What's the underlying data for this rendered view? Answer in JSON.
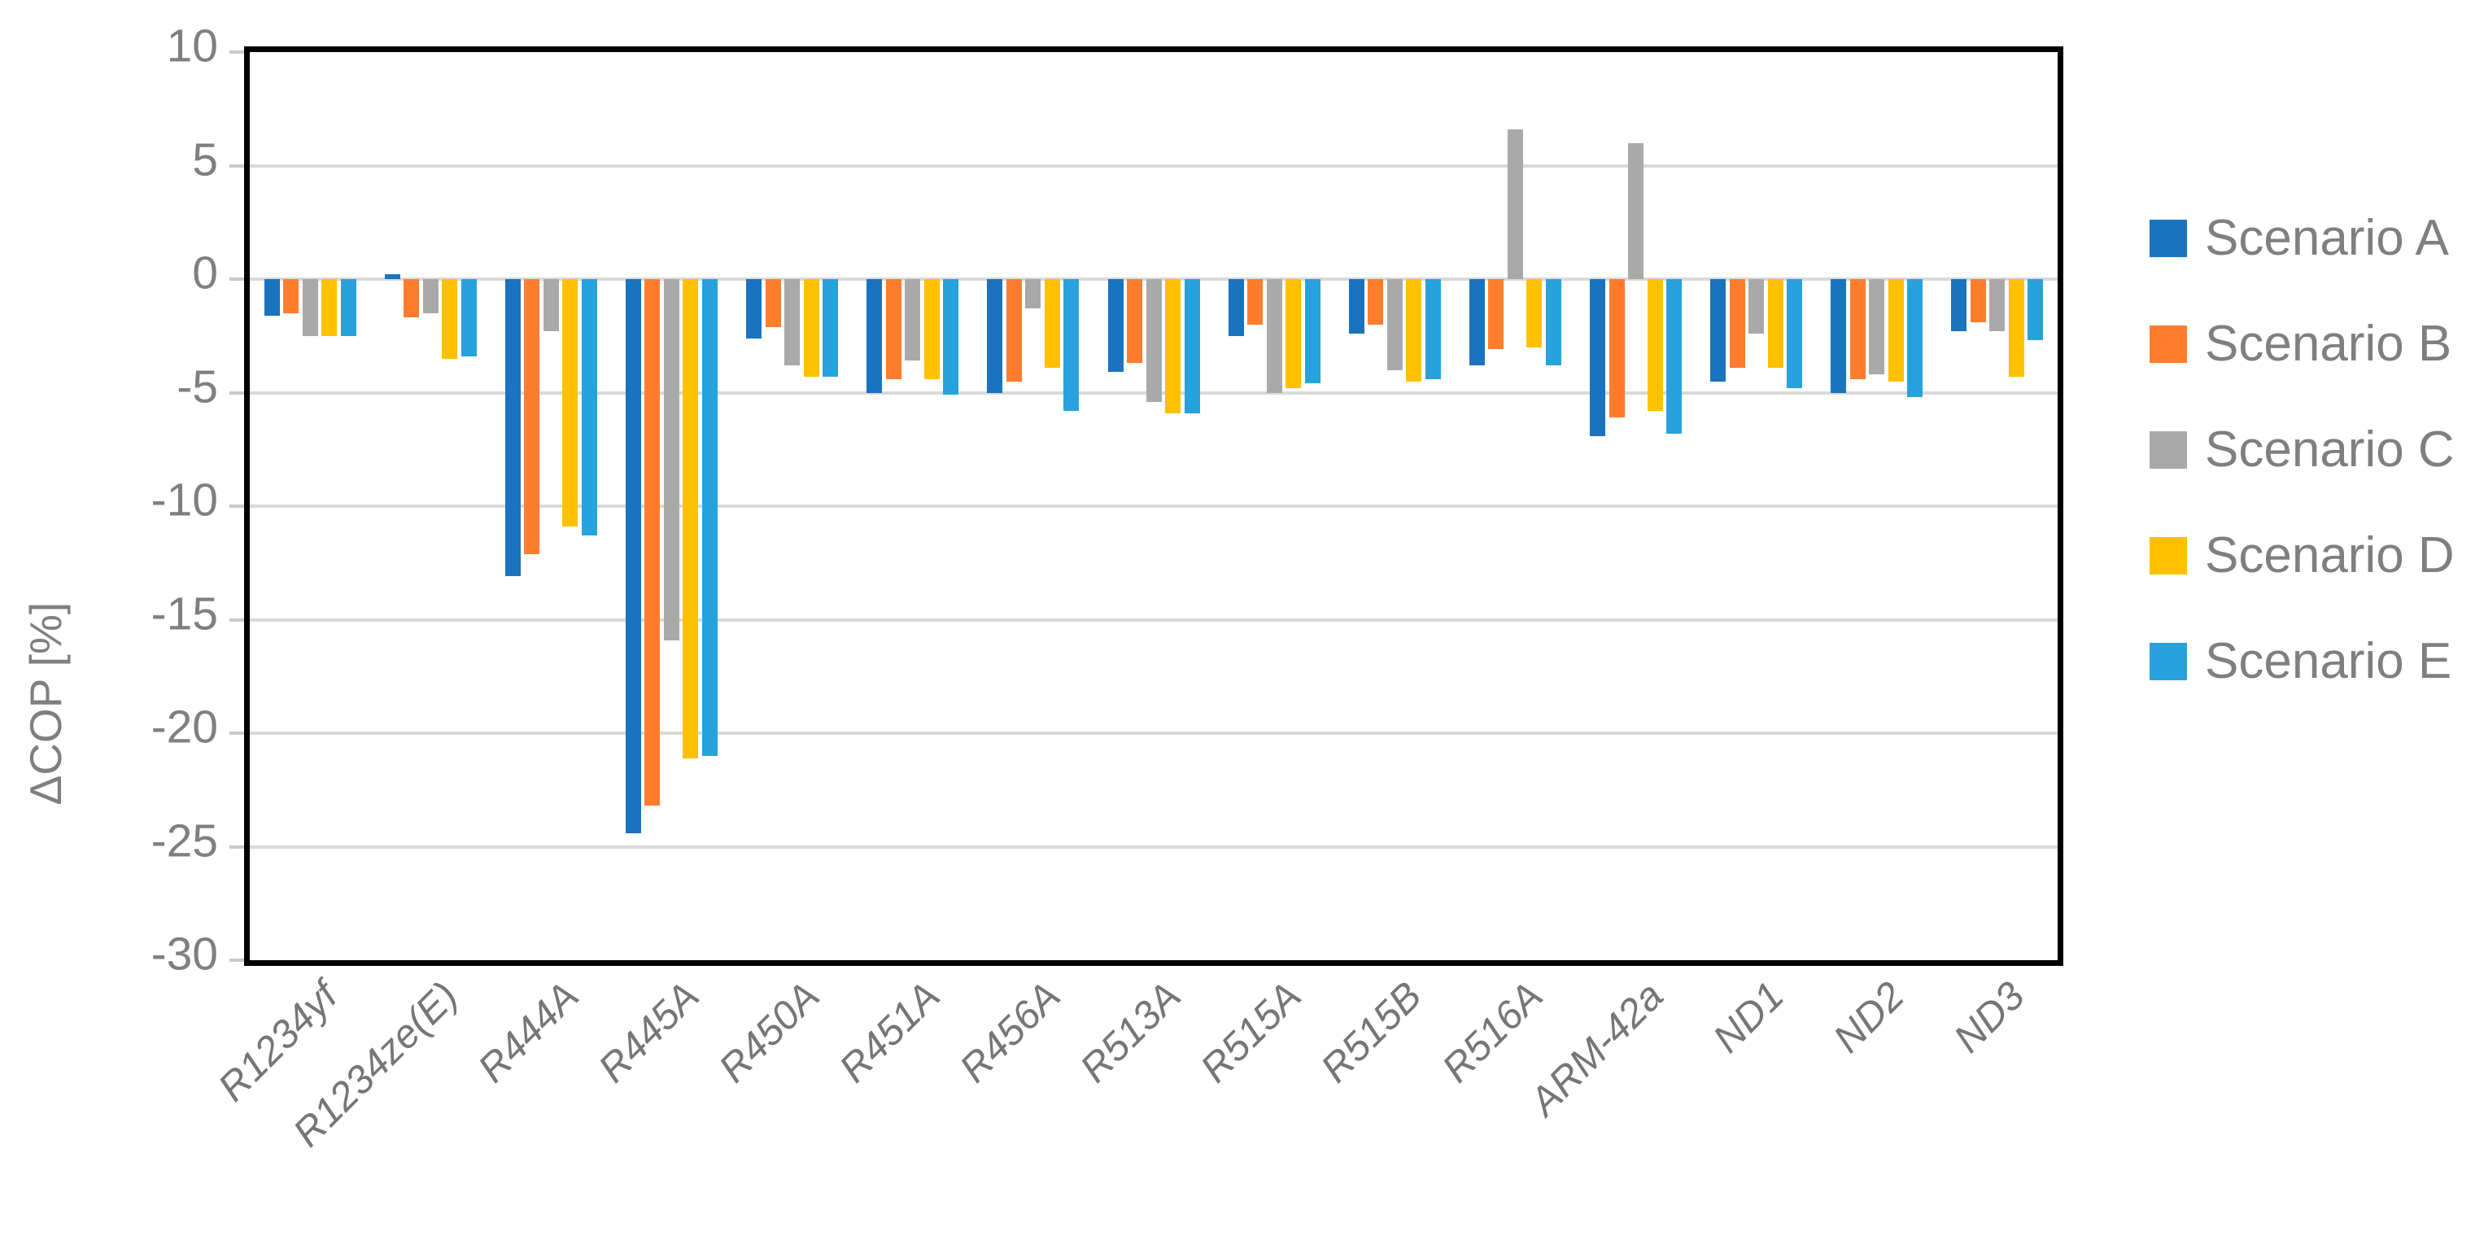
{
  "chart_data": {
    "type": "bar",
    "title": "",
    "xlabel": "",
    "ylabel": "ΔCOP [%]",
    "ylim": [
      -30,
      10
    ],
    "yticks": [
      10,
      5,
      0,
      -5,
      -10,
      -15,
      -20,
      -25,
      -30
    ],
    "grid": "horizontal",
    "legend_position": "right",
    "categories": [
      "R1234yf",
      "R1234ze(E)",
      "R444A",
      "R445A",
      "R450A",
      "R451A",
      "R456A",
      "R513A",
      "R515A",
      "R515B",
      "R516A",
      "ARM-42a",
      "ND1",
      "ND2",
      "ND3"
    ],
    "series": [
      {
        "name": "Scenario A",
        "color": "#1a73be",
        "values": [
          -1.6,
          0.2,
          -13.1,
          -24.4,
          -2.6,
          -5.0,
          -5.0,
          -4.1,
          -2.5,
          -2.4,
          -3.8,
          -6.9,
          -4.5,
          -5.0,
          -2.3
        ]
      },
      {
        "name": "Scenario B",
        "color": "#ff7d2d",
        "values": [
          -1.5,
          -1.7,
          -12.1,
          -23.2,
          -2.1,
          -4.4,
          -4.5,
          -3.7,
          -2.0,
          -2.0,
          -3.1,
          -6.1,
          -3.9,
          -4.4,
          -1.9
        ]
      },
      {
        "name": "Scenario C",
        "color": "#a9a9a9",
        "values": [
          -2.5,
          -1.5,
          -2.3,
          -15.9,
          -3.8,
          -3.6,
          -1.3,
          -5.4,
          -5.0,
          -4.0,
          6.6,
          6.0,
          -2.4,
          -4.2,
          -2.3
        ]
      },
      {
        "name": "Scenario D",
        "color": "#ffc000",
        "values": [
          -2.5,
          -3.5,
          -10.9,
          -21.1,
          -4.3,
          -4.4,
          -3.9,
          -5.9,
          -4.8,
          -4.5,
          -3.0,
          -5.8,
          -3.9,
          -4.5,
          -4.3
        ]
      },
      {
        "name": "Scenario E",
        "color": "#28a2dc",
        "values": [
          -2.5,
          -3.4,
          -11.3,
          -21.0,
          -4.3,
          -5.1,
          -5.8,
          -5.9,
          -4.6,
          -4.4,
          -3.8,
          -6.8,
          -4.8,
          -5.2,
          -2.7
        ]
      }
    ],
    "colors": {
      "gridline": "#d9d9d9",
      "frame": "#000000",
      "axis_text": "#7f7f7f",
      "category_text": "#767676"
    }
  }
}
